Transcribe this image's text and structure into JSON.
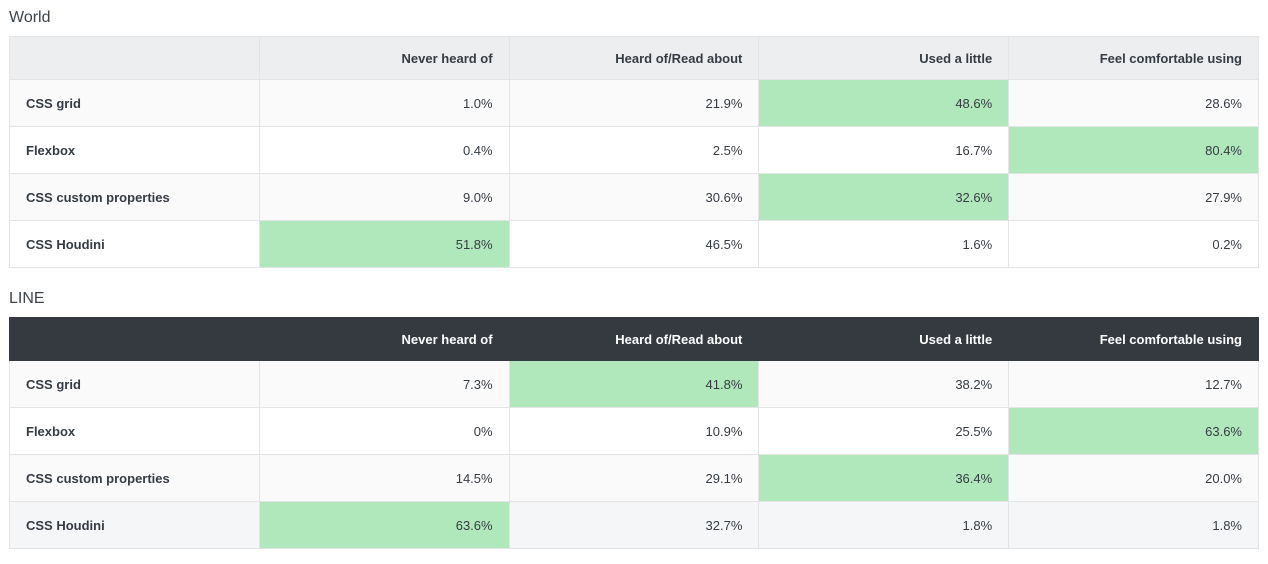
{
  "page": {
    "background": "#ffffff"
  },
  "colors": {
    "highlight": "#b0e8bc",
    "border": "#e3e4e6",
    "light_header_bg": "#edeef0",
    "dark_header_bg": "#343a40",
    "dark_header_text": "#ffffff",
    "text": "#363c43",
    "title_text": "#3d434a",
    "row_stripe": "#fafafa",
    "shaded_row": "#f5f6f7"
  },
  "tables": [
    {
      "title": "World",
      "theme": "light",
      "columns": [
        "",
        "Never heard of",
        "Heard of/Read about",
        "Used a little",
        "Feel comfortable using"
      ],
      "rows": [
        {
          "label": "CSS grid",
          "values": [
            "1.0%",
            "21.9%",
            "48.6%",
            "28.6%"
          ],
          "highlight_index": 2,
          "shaded": false
        },
        {
          "label": "Flexbox",
          "values": [
            "0.4%",
            "2.5%",
            "16.7%",
            "80.4%"
          ],
          "highlight_index": 3,
          "shaded": false
        },
        {
          "label": "CSS custom properties",
          "values": [
            "9.0%",
            "30.6%",
            "32.6%",
            "27.9%"
          ],
          "highlight_index": 2,
          "shaded": false
        },
        {
          "label": "CSS Houdini",
          "values": [
            "51.8%",
            "46.5%",
            "1.6%",
            "0.2%"
          ],
          "highlight_index": 0,
          "shaded": false
        }
      ]
    },
    {
      "title": "LINE",
      "theme": "dark",
      "columns": [
        "",
        "Never heard of",
        "Heard of/Read about",
        "Used a little",
        "Feel comfortable using"
      ],
      "rows": [
        {
          "label": "CSS grid",
          "values": [
            "7.3%",
            "41.8%",
            "38.2%",
            "12.7%"
          ],
          "highlight_index": 1,
          "shaded": false
        },
        {
          "label": "Flexbox",
          "values": [
            "0%",
            "10.9%",
            "25.5%",
            "63.6%"
          ],
          "highlight_index": 3,
          "shaded": false
        },
        {
          "label": "CSS custom properties",
          "values": [
            "14.5%",
            "29.1%",
            "36.4%",
            "20.0%"
          ],
          "highlight_index": 2,
          "shaded": false
        },
        {
          "label": "CSS Houdini",
          "values": [
            "63.6%",
            "32.7%",
            "1.8%",
            "1.8%"
          ],
          "highlight_index": 0,
          "shaded": true
        }
      ]
    }
  ],
  "chart_data": [
    {
      "type": "table",
      "title": "World",
      "columns": [
        "Never heard of",
        "Heard of/Read about",
        "Used a little",
        "Feel comfortable using"
      ],
      "row_labels": [
        "CSS grid",
        "Flexbox",
        "CSS custom properties",
        "CSS Houdini"
      ],
      "values_pct": [
        [
          1.0,
          21.9,
          48.6,
          28.6
        ],
        [
          0.4,
          2.5,
          16.7,
          80.4
        ],
        [
          9.0,
          30.6,
          32.6,
          27.9
        ],
        [
          51.8,
          46.5,
          1.6,
          0.2
        ]
      ],
      "highlighted_cell_per_row": [
        2,
        3,
        2,
        0
      ],
      "highlight_meaning": "maximum value in row",
      "highlight_color": "#b0e8bc"
    },
    {
      "type": "table",
      "title": "LINE",
      "columns": [
        "Never heard of",
        "Heard of/Read about",
        "Used a little",
        "Feel comfortable using"
      ],
      "row_labels": [
        "CSS grid",
        "Flexbox",
        "CSS custom properties",
        "CSS Houdini"
      ],
      "values_pct": [
        [
          7.3,
          41.8,
          38.2,
          12.7
        ],
        [
          0,
          10.9,
          25.5,
          63.6
        ],
        [
          14.5,
          29.1,
          36.4,
          20.0
        ],
        [
          63.6,
          32.7,
          1.8,
          1.8
        ]
      ],
      "highlighted_cell_per_row": [
        1,
        3,
        2,
        0
      ],
      "highlight_meaning": "maximum value in row",
      "highlight_color": "#b0e8bc"
    }
  ]
}
